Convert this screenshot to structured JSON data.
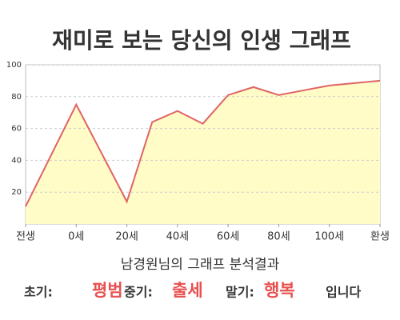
{
  "chart_data": {
    "type": "area",
    "title": "재미로 보는 당신의 인생 그래프",
    "x": [
      -20,
      0,
      20,
      30,
      40,
      50,
      60,
      70,
      80,
      100,
      120
    ],
    "values": [
      11,
      75,
      14,
      64,
      71,
      63,
      81,
      86,
      81,
      87,
      90
    ],
    "color": "#e06464",
    "fill": "#fffcc8",
    "xlim": [
      -20,
      120
    ],
    "xticks": [
      {
        "value": -20,
        "label": "전생"
      },
      {
        "value": 0,
        "label": "0세"
      },
      {
        "value": 20,
        "label": "20세"
      },
      {
        "value": 40,
        "label": "40세"
      },
      {
        "value": 60,
        "label": "60세"
      },
      {
        "value": 80,
        "label": "80세"
      },
      {
        "value": 100,
        "label": "100세"
      },
      {
        "value": 120,
        "label": "환생"
      }
    ],
    "ylim": [
      0,
      100
    ],
    "yticks": [
      20,
      40,
      60,
      80,
      100
    ],
    "grid": true
  },
  "analysis": {
    "title": "남경원님의 그래프 분석결과",
    "stages": [
      {
        "label": "초기:",
        "word": "평범"
      },
      {
        "label": "중기:",
        "word": "출세"
      },
      {
        "label": "말기:",
        "word": "행복"
      }
    ],
    "ending": "입니다"
  }
}
